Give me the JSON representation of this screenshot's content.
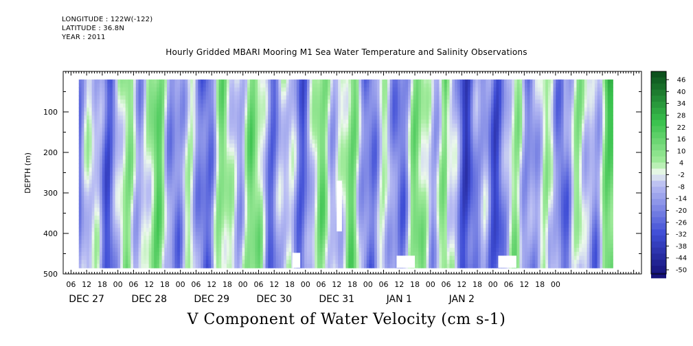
{
  "header": {
    "longitude": "LONGITUDE : 122W(-122)",
    "latitude": "LATITUDE : 36.8N",
    "year": "YEAR : 2011"
  },
  "title": "Hourly Gridded MBARI Mooring M1 Sea Water Temperature and Salinity Observations",
  "variable_label": "V Component of Water Velocity (cm s-1)",
  "chart_data": {
    "type": "heatmap",
    "title": "Hourly Gridded MBARI Mooring M1 Sea Water Temperature and Salinity Observations",
    "xlabel": "",
    "ylabel": "DEPTH (m)",
    "ylim": [
      500,
      0
    ],
    "y_reversed": true,
    "y_ticks": [
      100,
      200,
      300,
      400,
      500
    ],
    "x_hour_labels": [
      "06",
      "12",
      "18",
      "00",
      "06",
      "12",
      "18",
      "00",
      "06",
      "12",
      "18",
      "00",
      "06",
      "12",
      "18",
      "00",
      "06",
      "12",
      "18",
      "00",
      "06",
      "12",
      "18",
      "00",
      "06",
      "12",
      "18",
      "00",
      "06",
      "12",
      "18",
      "00"
    ],
    "x_day_labels": [
      "DEC 27",
      "DEC 28",
      "DEC 29",
      "DEC 30",
      "DEC 31",
      "JAN  1",
      "JAN  2"
    ],
    "data_extent_hours": [
      9,
      214
    ],
    "data_depth_range_m": [
      20,
      485
    ],
    "colorbar_labels": [
      "46",
      "40",
      "34",
      "28",
      "22",
      "16",
      "10",
      "4",
      "-2",
      "-8",
      "-14",
      "-20",
      "-26",
      "-32",
      "-38",
      "-44",
      "-50"
    ],
    "colorbar_range": [
      -50,
      50
    ],
    "colorbar_step": 3,
    "colors": {
      "neg_dark": "#16137a",
      "neg_mid": "#3f4ed6",
      "neg_light": "#b9bdf3",
      "zero": "#ecf8ec",
      "pos_light": "#a4ec9e",
      "pos_mid": "#39c24d",
      "pos_dark": "#0a4a1a"
    },
    "missing_data_regions": [
      {
        "hour_start": 91,
        "hour_end": 94,
        "depth_start": 448,
        "depth_end": 485
      },
      {
        "hour_start": 108,
        "hour_end": 110,
        "depth_start": 270,
        "depth_end": 395
      },
      {
        "hour_start": 131,
        "hour_end": 138,
        "depth_start": 455,
        "depth_end": 485
      },
      {
        "hour_start": 170,
        "hour_end": 177,
        "depth_start": 455,
        "depth_end": 485
      }
    ]
  }
}
